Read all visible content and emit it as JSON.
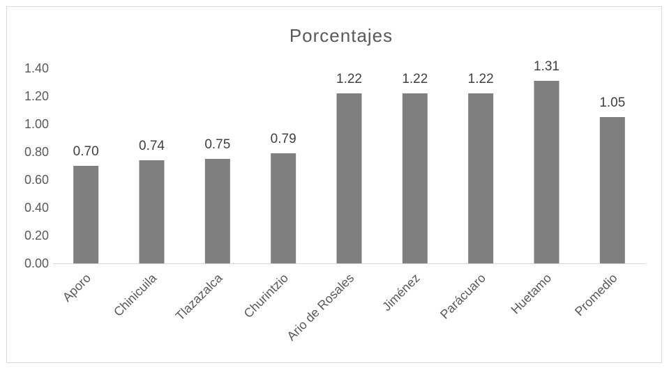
{
  "chart_data": {
    "type": "bar",
    "title": "Porcentajes",
    "xlabel": "",
    "ylabel": "",
    "ylim": [
      0,
      1.4
    ],
    "ytick_step": 0.2,
    "yticks": [
      "0.00",
      "0.20",
      "0.40",
      "0.60",
      "0.80",
      "1.00",
      "1.20",
      "1.40"
    ],
    "grid": false,
    "legend": "none",
    "bar_color": "#7f7f7f",
    "categories": [
      "Aporo",
      "Chinicuila",
      "Tlazazalca",
      "Churintzio",
      "Ario de Rosales",
      "Jiménez",
      "Parácuaro",
      "Huetamo",
      "Promedio"
    ],
    "values": [
      0.7,
      0.74,
      0.75,
      0.79,
      1.22,
      1.22,
      1.22,
      1.31,
      1.05
    ],
    "data_labels": [
      "0.70",
      "0.74",
      "0.75",
      "0.79",
      "1.22",
      "1.22",
      "1.22",
      "1.31",
      "1.05"
    ]
  }
}
